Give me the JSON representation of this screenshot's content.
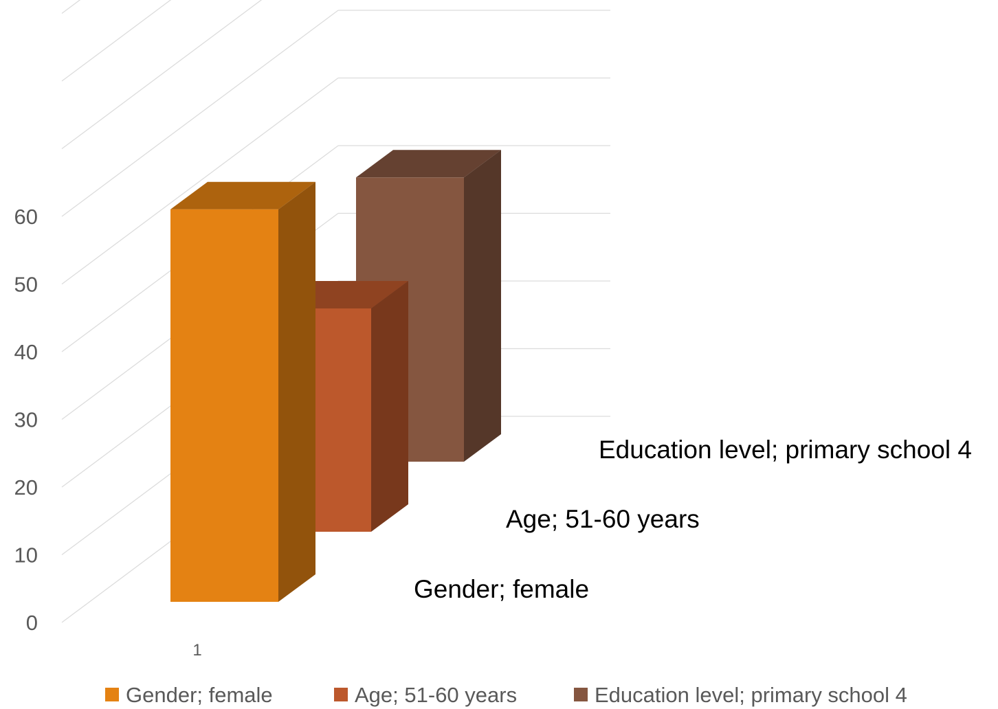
{
  "chart_data": {
    "type": "bar",
    "categories": [
      "1"
    ],
    "series": [
      {
        "name": "Gender; female",
        "values": [
          58
        ],
        "color": "#E48213"
      },
      {
        "name": "Age; 51-60 years",
        "values": [
          33
        ],
        "color": "#BC582C"
      },
      {
        "name": "Education level; primary school 4",
        "values": [
          42
        ],
        "color": "#855640"
      }
    ],
    "yticks": [
      0,
      10,
      20,
      30,
      40,
      50,
      60
    ],
    "ylim": [
      0,
      90
    ],
    "grid": true,
    "legend_position": "bottom",
    "projection": "3d"
  }
}
